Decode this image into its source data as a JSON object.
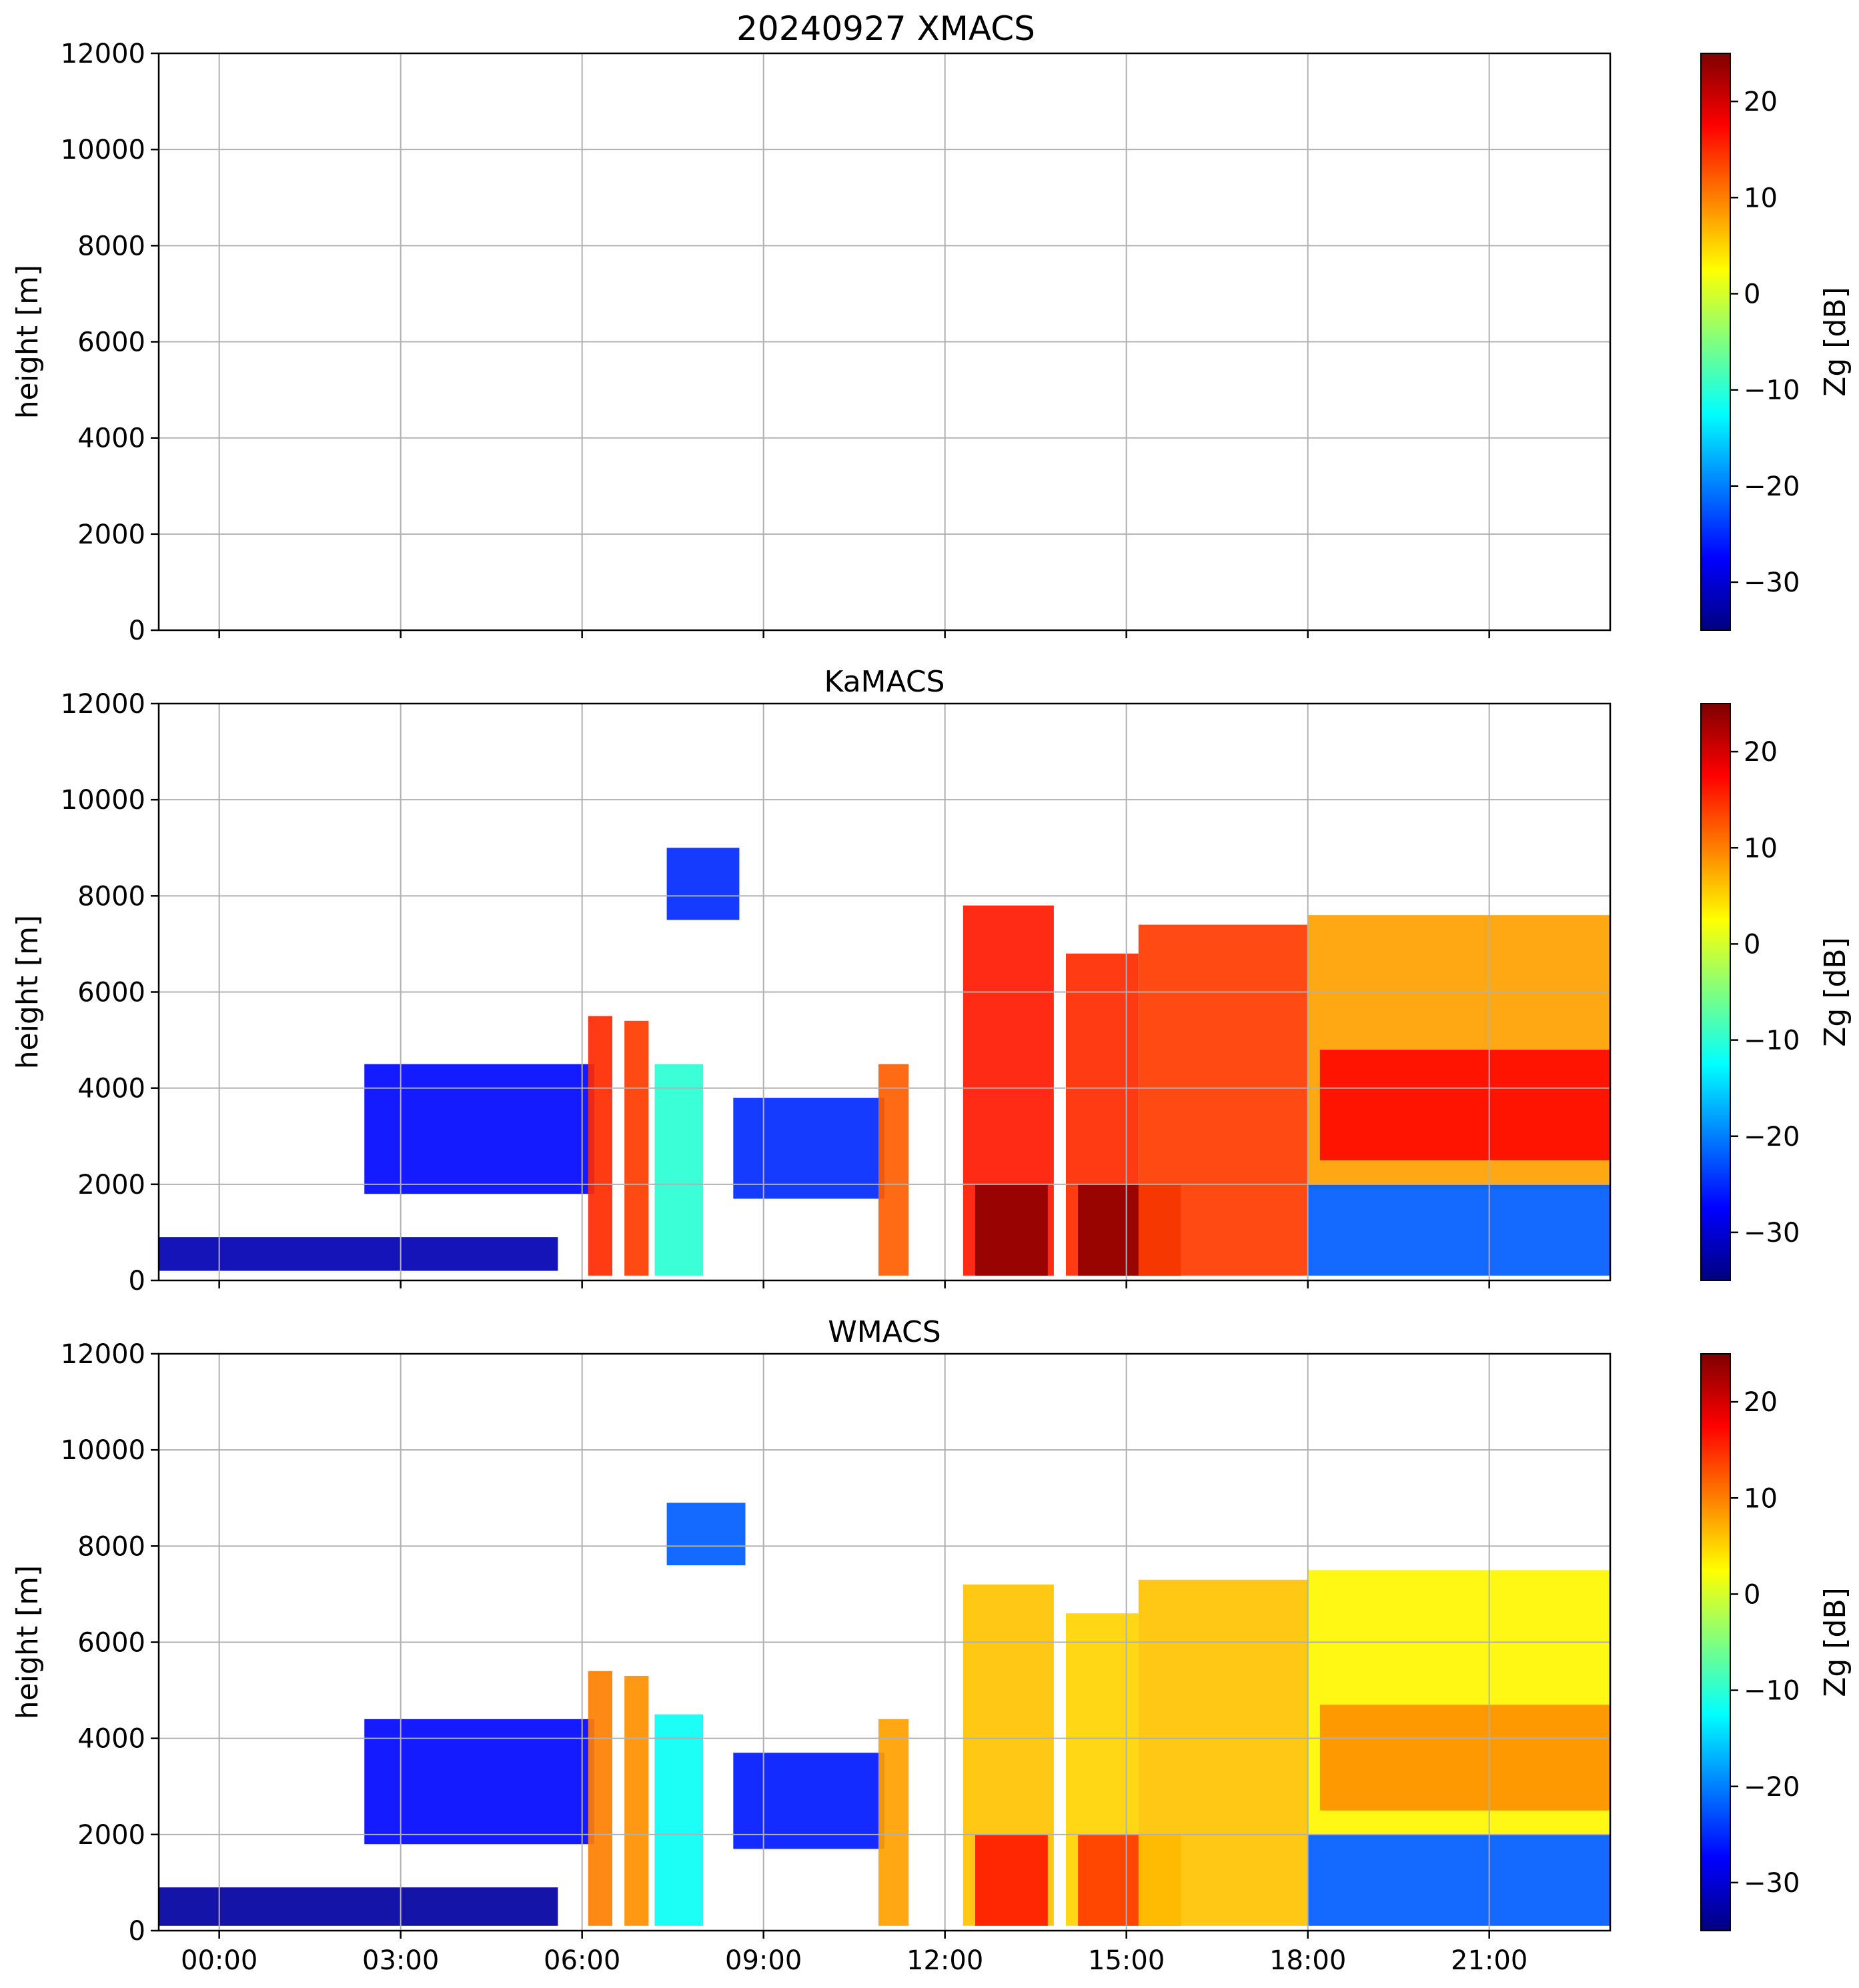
{
  "figure": {
    "title": "20240927 XMACS"
  },
  "colormap": {
    "name": "jet",
    "stops": [
      "#00007f",
      "#0000ff",
      "#007fff",
      "#00ffff",
      "#7fff7f",
      "#ffff00",
      "#ff7f00",
      "#ff0000",
      "#7f0000"
    ],
    "background": "#ffffff",
    "grid": "#b0b0b0"
  },
  "chart_data": [
    {
      "type": "heatmap",
      "title": "20240927 XMACS",
      "xlabel": "",
      "ylabel": "height [m]",
      "x_range_hours": [
        -1.0,
        23.0
      ],
      "ylim": [
        0,
        12000
      ],
      "y_ticks": [
        0,
        2000,
        4000,
        6000,
        8000,
        10000,
        12000
      ],
      "x_ticks_hours": [
        0,
        3,
        6,
        9,
        12,
        15,
        18,
        21
      ],
      "x_tick_labels": [
        "00:00",
        "03:00",
        "06:00",
        "09:00",
        "12:00",
        "15:00",
        "18:00",
        "21:00"
      ],
      "show_x_tick_labels": false,
      "grid": true,
      "colorbar": {
        "label": "Zg [dB]",
        "range": [
          -35,
          25
        ],
        "ticks": [
          -30,
          -20,
          -10,
          0,
          10,
          20
        ]
      },
      "regions": []
    },
    {
      "type": "heatmap",
      "title": "KaMACS",
      "xlabel": "",
      "ylabel": "height [m]",
      "x_range_hours": [
        -1.0,
        23.0
      ],
      "ylim": [
        0,
        12000
      ],
      "y_ticks": [
        0,
        2000,
        4000,
        6000,
        8000,
        10000,
        12000
      ],
      "x_ticks_hours": [
        0,
        3,
        6,
        9,
        12,
        15,
        18,
        21
      ],
      "x_tick_labels": [
        "00:00",
        "03:00",
        "06:00",
        "09:00",
        "12:00",
        "15:00",
        "18:00",
        "21:00"
      ],
      "show_x_tick_labels": false,
      "grid": true,
      "colorbar": {
        "label": "Zg [dB]",
        "range": [
          -35,
          25
        ],
        "ticks": [
          -30,
          -20,
          -10,
          0,
          10,
          20
        ]
      },
      "regions": [
        {
          "desc": "surface clutter layer",
          "t": [
            -1.0,
            5.6
          ],
          "h": [
            200,
            900
          ],
          "dbz": -32
        },
        {
          "desc": "cirrus patch",
          "t": [
            7.4,
            8.6
          ],
          "h": [
            7500,
            9000
          ],
          "dbz": -25
        },
        {
          "desc": "mid-level layer",
          "t": [
            2.4,
            6.2
          ],
          "h": [
            1800,
            4500
          ],
          "dbz": -27
        },
        {
          "desc": "shower",
          "t": [
            6.1,
            6.5
          ],
          "h": [
            100,
            5500
          ],
          "dbz": 15
        },
        {
          "desc": "shower",
          "t": [
            6.7,
            7.1
          ],
          "h": [
            100,
            5400
          ],
          "dbz": 14
        },
        {
          "desc": "shower",
          "t": [
            7.2,
            8.0
          ],
          "h": [
            100,
            4500
          ],
          "dbz": -10
        },
        {
          "desc": "anvil",
          "t": [
            8.5,
            11.0
          ],
          "h": [
            1700,
            3800
          ],
          "dbz": -25
        },
        {
          "desc": "shower",
          "t": [
            10.9,
            11.4
          ],
          "h": [
            100,
            4500
          ],
          "dbz": 12
        },
        {
          "desc": "convective core",
          "t": [
            12.3,
            13.8
          ],
          "h": [
            100,
            7800
          ],
          "dbz": 16
        },
        {
          "desc": "heavy rain",
          "t": [
            12.5,
            13.7
          ],
          "h": [
            100,
            2000
          ],
          "dbz": 24
        },
        {
          "desc": "convective core",
          "t": [
            14.0,
            15.2
          ],
          "h": [
            100,
            6800
          ],
          "dbz": 15
        },
        {
          "desc": "heavy rain",
          "t": [
            14.2,
            15.9
          ],
          "h": [
            100,
            2000
          ],
          "dbz": 24
        },
        {
          "desc": "deep stratiform",
          "t": [
            15.2,
            18.0
          ],
          "h": [
            100,
            7400
          ],
          "dbz": 14
        },
        {
          "desc": "upper cloud",
          "t": [
            18.0,
            23.0
          ],
          "h": [
            1900,
            7600
          ],
          "dbz": 8
        },
        {
          "desc": "melting layer",
          "t": [
            18.2,
            23.0
          ],
          "h": [
            2500,
            4800
          ],
          "dbz": 17
        },
        {
          "desc": "fall streaks",
          "t": [
            18.0,
            23.0
          ],
          "h": [
            100,
            2000
          ],
          "dbz": -22
        }
      ]
    },
    {
      "type": "heatmap",
      "title": "WMACS",
      "xlabel": "",
      "ylabel": "height [m]",
      "x_range_hours": [
        -1.0,
        23.0
      ],
      "ylim": [
        0,
        12000
      ],
      "y_ticks": [
        0,
        2000,
        4000,
        6000,
        8000,
        10000,
        12000
      ],
      "x_ticks_hours": [
        0,
        3,
        6,
        9,
        12,
        15,
        18,
        21
      ],
      "x_tick_labels": [
        "00:00",
        "03:00",
        "06:00",
        "09:00",
        "12:00",
        "15:00",
        "18:00",
        "21:00"
      ],
      "show_x_tick_labels": true,
      "grid": true,
      "colorbar": {
        "label": "Zg [dB]",
        "range": [
          -35,
          25
        ],
        "ticks": [
          -30,
          -20,
          -10,
          0,
          10,
          20
        ]
      },
      "regions": [
        {
          "desc": "sparse clutter",
          "t": [
            -1.0,
            5.6
          ],
          "h": [
            100,
            900
          ],
          "dbz": -33
        },
        {
          "desc": "cirrus patch",
          "t": [
            7.4,
            8.7
          ],
          "h": [
            7600,
            8900
          ],
          "dbz": -22
        },
        {
          "desc": "mid-level layer",
          "t": [
            2.4,
            6.2
          ],
          "h": [
            1800,
            4400
          ],
          "dbz": -27
        },
        {
          "desc": "shower",
          "t": [
            6.1,
            6.5
          ],
          "h": [
            100,
            5400
          ],
          "dbz": 10
        },
        {
          "desc": "shower",
          "t": [
            6.7,
            7.1
          ],
          "h": [
            100,
            5300
          ],
          "dbz": 9
        },
        {
          "desc": "shower",
          "t": [
            7.2,
            8.0
          ],
          "h": [
            100,
            4500
          ],
          "dbz": -12
        },
        {
          "desc": "anvil",
          "t": [
            8.5,
            11.0
          ],
          "h": [
            1700,
            3700
          ],
          "dbz": -26
        },
        {
          "desc": "shower",
          "t": [
            10.9,
            11.4
          ],
          "h": [
            100,
            4400
          ],
          "dbz": 8
        },
        {
          "desc": "convective core",
          "t": [
            12.3,
            13.8
          ],
          "h": [
            100,
            7200
          ],
          "dbz": 6
        },
        {
          "desc": "rain",
          "t": [
            12.5,
            13.7
          ],
          "h": [
            100,
            2000
          ],
          "dbz": 16
        },
        {
          "desc": "convective core",
          "t": [
            14.0,
            15.2
          ],
          "h": [
            100,
            6600
          ],
          "dbz": 5
        },
        {
          "desc": "rain",
          "t": [
            14.2,
            15.9
          ],
          "h": [
            100,
            2000
          ],
          "dbz": 14
        },
        {
          "desc": "deep stratiform",
          "t": [
            15.2,
            18.0
          ],
          "h": [
            100,
            7300
          ],
          "dbz": 6
        },
        {
          "desc": "upper cloud",
          "t": [
            18.0,
            23.0
          ],
          "h": [
            1900,
            7500
          ],
          "dbz": 3
        },
        {
          "desc": "melting layer",
          "t": [
            18.2,
            23.0
          ],
          "h": [
            2500,
            4700
          ],
          "dbz": 9
        },
        {
          "desc": "fall streaks",
          "t": [
            18.0,
            23.0
          ],
          "h": [
            100,
            2000
          ],
          "dbz": -22
        }
      ]
    }
  ]
}
